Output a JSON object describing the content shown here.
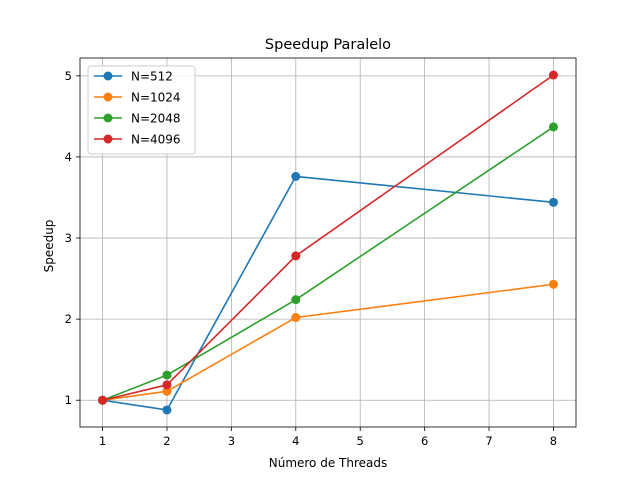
{
  "chart_data": {
    "type": "line",
    "title": "Speedup Paralelo",
    "xlabel": "Número de Threads",
    "ylabel": "Speedup",
    "xlim": [
      0.65,
      8.35
    ],
    "ylim": [
      0.67,
      5.22
    ],
    "xticks": [
      1,
      2,
      3,
      4,
      5,
      6,
      7,
      8
    ],
    "yticks": [
      1,
      2,
      3,
      4,
      5
    ],
    "grid": true,
    "legend_position": "top-left",
    "x": [
      1,
      2,
      4,
      8
    ],
    "series": [
      {
        "name": "N=512",
        "color": "#1f77b4",
        "values": [
          1.0,
          0.88,
          3.76,
          3.44
        ]
      },
      {
        "name": "N=1024",
        "color": "#ff7f0e",
        "values": [
          1.0,
          1.11,
          2.02,
          2.43
        ]
      },
      {
        "name": "N=2048",
        "color": "#2ca02c",
        "values": [
          1.0,
          1.31,
          2.24,
          4.37
        ]
      },
      {
        "name": "N=4096",
        "color": "#d62728",
        "values": [
          1.0,
          1.19,
          2.78,
          5.01
        ]
      }
    ]
  }
}
